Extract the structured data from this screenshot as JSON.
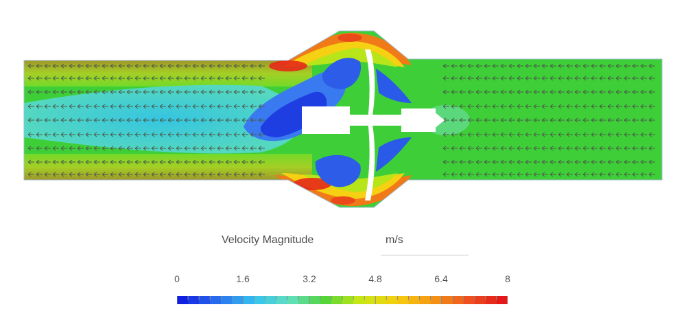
{
  "legend": {
    "title": "Velocity Magnitude",
    "unit": "m/s",
    "ticks": [
      "0",
      "1.6",
      "3.2",
      "4.8",
      "6.4",
      "8"
    ],
    "range": [
      0,
      8
    ],
    "colormap": [
      "#1020e0",
      "#2a70f0",
      "#34c0ef",
      "#62e0c0",
      "#52d43a",
      "#c8e814",
      "#f5d010",
      "#f59a14",
      "#ef5520",
      "#e41818"
    ]
  },
  "field": {
    "background_color": "#3ecf38",
    "wall_color": "#ffffff",
    "body_color": "#ffffff",
    "arrow_color": "#4a5a48"
  }
}
